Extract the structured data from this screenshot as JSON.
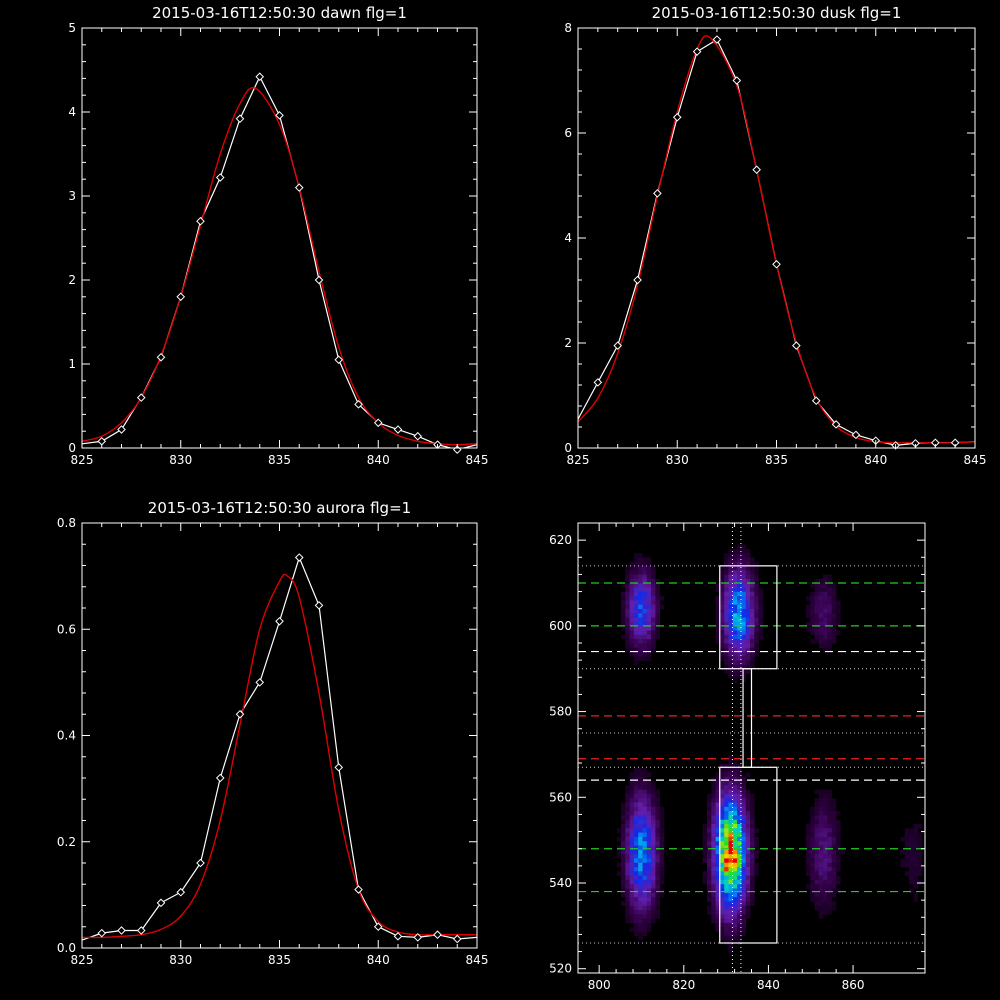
{
  "colors": {
    "background": "#000000",
    "axes": "#ffffff",
    "observed": "#ffffff",
    "fit": "#dd0000",
    "green_lines": "#22cc22",
    "red_lines": "#ee2222",
    "white_lines": "#ffffff"
  },
  "chart_data": [
    {
      "type": "line",
      "title": "2015-03-16T12:50:30 dawn flg=1",
      "xlim": [
        825,
        845
      ],
      "ylim": [
        0,
        5
      ],
      "xticks": [
        825,
        830,
        835,
        840,
        845
      ],
      "yticks": [
        0,
        1,
        2,
        3,
        4,
        5
      ],
      "series": [
        {
          "role": "observed",
          "marker": "diamond",
          "x": [
            825,
            826,
            827,
            828,
            829,
            830,
            831,
            832,
            833,
            834,
            835,
            836,
            837,
            838,
            839,
            840,
            841,
            842,
            843,
            844,
            845
          ],
          "y": [
            0.05,
            0.08,
            0.22,
            0.6,
            1.08,
            1.8,
            2.7,
            3.22,
            3.92,
            4.42,
            3.96,
            3.1,
            2.0,
            1.05,
            0.52,
            0.3,
            0.22,
            0.14,
            0.04,
            -0.02,
            0.04
          ]
        },
        {
          "role": "fit",
          "x": [
            825,
            826,
            827,
            828,
            829,
            830,
            831,
            832,
            833,
            833.8,
            835,
            836,
            837,
            838,
            839,
            840,
            841,
            842,
            843,
            844,
            845
          ],
          "y": [
            0.08,
            0.14,
            0.3,
            0.6,
            1.1,
            1.8,
            2.65,
            3.5,
            4.1,
            4.28,
            3.85,
            3.1,
            2.1,
            1.2,
            0.6,
            0.3,
            0.15,
            0.08,
            0.05,
            0.04,
            0.05
          ]
        }
      ]
    },
    {
      "type": "line",
      "title": "2015-03-16T12:50:30 dusk flg=1",
      "xlim": [
        825,
        845
      ],
      "ylim": [
        0,
        8
      ],
      "xticks": [
        825,
        830,
        835,
        840,
        845
      ],
      "yticks": [
        0,
        2,
        4,
        6,
        8
      ],
      "series": [
        {
          "role": "observed",
          "marker": "diamond",
          "x": [
            825,
            826,
            827,
            828,
            829,
            830,
            831,
            832,
            833,
            834,
            835,
            836,
            837,
            838,
            839,
            840,
            841,
            842,
            843,
            844,
            845
          ],
          "y": [
            0.55,
            1.25,
            1.95,
            3.2,
            4.85,
            6.3,
            7.55,
            7.78,
            7.0,
            5.3,
            3.5,
            1.95,
            0.9,
            0.45,
            0.25,
            0.14,
            0.05,
            0.09,
            0.1,
            0.1,
            0.12
          ]
        },
        {
          "role": "fit",
          "x": [
            825,
            826,
            827,
            828,
            829,
            830,
            831,
            831.7,
            833,
            834,
            835,
            836,
            837,
            838,
            839,
            840,
            841,
            842,
            843,
            844,
            845
          ],
          "y": [
            0.5,
            0.95,
            1.8,
            3.1,
            4.8,
            6.4,
            7.6,
            7.8,
            6.9,
            5.3,
            3.5,
            2.0,
            0.95,
            0.42,
            0.2,
            0.12,
            0.1,
            0.1,
            0.1,
            0.1,
            0.12
          ]
        }
      ]
    },
    {
      "type": "line",
      "title": "2015-03-16T12:50:30 aurora flg=1",
      "xlim": [
        825,
        845
      ],
      "ylim": [
        0,
        0.8
      ],
      "xticks": [
        825,
        830,
        835,
        840,
        845
      ],
      "yticks": [
        0.0,
        0.2,
        0.4,
        0.6,
        0.8
      ],
      "ytick_labels": [
        "0.0",
        "0.2",
        "0.4",
        "0.6",
        "0.8"
      ],
      "series": [
        {
          "role": "observed",
          "marker": "diamond",
          "x": [
            825,
            826,
            827,
            828,
            829,
            830,
            831,
            832,
            833,
            834,
            835,
            836,
            837,
            838,
            839,
            840,
            841,
            842,
            843,
            844,
            845
          ],
          "y": [
            0.015,
            0.028,
            0.033,
            0.033,
            0.085,
            0.105,
            0.16,
            0.32,
            0.44,
            0.5,
            0.615,
            0.735,
            0.645,
            0.34,
            0.11,
            0.04,
            0.022,
            0.02,
            0.025,
            0.017,
            0.02
          ]
        },
        {
          "role": "fit",
          "x": [
            825,
            826,
            827,
            828,
            829,
            830,
            831,
            832,
            833,
            834,
            835,
            835.4,
            836,
            837,
            838,
            839,
            840,
            841,
            842,
            843,
            844,
            845
          ],
          "y": [
            0.02,
            0.02,
            0.022,
            0.025,
            0.035,
            0.06,
            0.12,
            0.24,
            0.42,
            0.6,
            0.69,
            0.7,
            0.66,
            0.48,
            0.26,
            0.11,
            0.05,
            0.03,
            0.025,
            0.025,
            0.025,
            0.025
          ]
        }
      ]
    },
    {
      "type": "heatmap",
      "xlim": [
        795,
        877
      ],
      "ylim": [
        519,
        624
      ],
      "xticks": [
        800,
        820,
        840,
        860
      ],
      "yticks": [
        520,
        540,
        560,
        580,
        600,
        620
      ],
      "sources": [
        {
          "x": 810,
          "y": 547,
          "sx": 2.5,
          "sy": 9,
          "amp": 0.55
        },
        {
          "x": 810,
          "y": 604,
          "sx": 2.3,
          "sy": 6,
          "amp": 0.45
        },
        {
          "x": 831,
          "y": 547,
          "sx": 2.6,
          "sy": 9,
          "amp": 1.0
        },
        {
          "x": 833,
          "y": 603,
          "sx": 2.5,
          "sy": 7,
          "amp": 0.6
        },
        {
          "x": 853,
          "y": 547,
          "sx": 2.5,
          "sy": 9,
          "amp": 0.2
        },
        {
          "x": 853,
          "y": 603,
          "sx": 2.5,
          "sy": 6,
          "amp": 0.16
        },
        {
          "x": 874,
          "y": 547,
          "sx": 2.5,
          "sy": 9,
          "amp": 0.08
        }
      ],
      "vertical_dotted_lines_x": [
        831.5,
        833.5
      ],
      "dotted_hlines_y": [
        614,
        590,
        575,
        567,
        526
      ],
      "green_dashed_y": [
        610,
        600,
        548,
        538
      ],
      "white_dashed_y": [
        594,
        564
      ],
      "red_dashed_y": [
        579,
        569
      ],
      "boxes": [
        {
          "x0": 828.5,
          "x1": 842,
          "y0": 590,
          "y1": 614
        },
        {
          "x0": 834,
          "x1": 836,
          "y0": 567,
          "y1": 590
        },
        {
          "x0": 828.5,
          "x1": 842,
          "y0": 526,
          "y1": 567
        }
      ]
    }
  ]
}
